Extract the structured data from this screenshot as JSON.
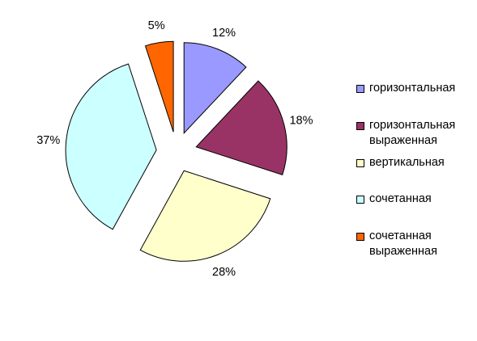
{
  "chart_data": {
    "type": "pie",
    "exploded": true,
    "categories": [
      "горизонтальная",
      "горизонтальная\nвыраженная",
      "вертикальная",
      "сочетанная",
      "сочетанная\nвыраженная"
    ],
    "values": [
      12,
      18,
      28,
      37,
      5
    ],
    "data_labels": [
      "12%",
      "18%",
      "28%",
      "37%",
      "5%"
    ],
    "colors": [
      "#9999FF",
      "#993366",
      "#FFFFCC",
      "#CCFFFF",
      "#FF6600"
    ],
    "legend": "right"
  }
}
